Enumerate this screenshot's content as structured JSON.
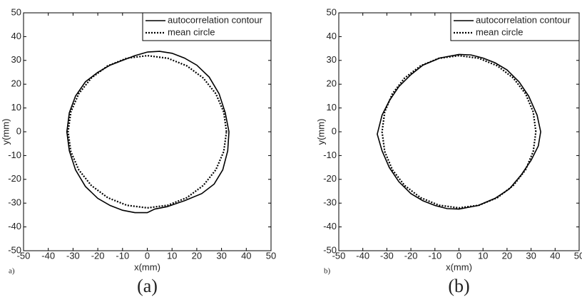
{
  "chart_data": [
    {
      "type": "line",
      "panel_label": "a)",
      "caption": "(a)",
      "x_label": "x(mm)",
      "y_label": "y(mm)",
      "xlim": [
        -50,
        50
      ],
      "ylim": [
        -50,
        50
      ],
      "xticks": [
        -50,
        -40,
        -30,
        -20,
        -10,
        0,
        10,
        20,
        30,
        40,
        50
      ],
      "yticks": [
        -50,
        -40,
        -30,
        -20,
        -10,
        0,
        10,
        20,
        30,
        40,
        50
      ],
      "legend": "upper right",
      "series": [
        {
          "name": "autocorrelation contour",
          "color": "#000000",
          "style": "solid",
          "x": [
            0,
            5,
            10,
            15,
            20,
            25,
            29,
            31.5,
            33,
            32.5,
            30.5,
            27,
            22,
            15,
            8,
            3,
            0,
            -5,
            -10,
            -15,
            -20,
            -25,
            -29,
            -31.5,
            -32.5,
            -31.5,
            -29,
            -25,
            -20,
            -15,
            -10,
            -5,
            0
          ],
          "values": [
            33.5,
            33.8,
            33,
            31,
            28,
            23,
            16,
            8,
            0,
            -8,
            -16,
            -22,
            -26,
            -29,
            -31.5,
            -32.5,
            -34,
            -34,
            -33,
            -31,
            -28,
            -23,
            -16,
            -8,
            0,
            8,
            15,
            21,
            25,
            28,
            30,
            32,
            33.5
          ]
        },
        {
          "name": "mean circle",
          "color": "#000000",
          "style": "dotted",
          "x": [
            32,
            30.9,
            27.7,
            22.6,
            16,
            8.3,
            0,
            -8.3,
            -16,
            -22.6,
            -27.7,
            -30.9,
            -32,
            -30.9,
            -27.7,
            -22.6,
            -16,
            -8.3,
            0,
            8.3,
            16,
            22.6,
            27.7,
            30.9,
            32
          ],
          "values": [
            0,
            8.3,
            16,
            22.6,
            27.7,
            30.9,
            32,
            30.9,
            27.7,
            22.6,
            16,
            8.3,
            0,
            -8.3,
            -16,
            -22.6,
            -27.7,
            -30.9,
            -32,
            -30.9,
            -27.7,
            -22.6,
            -16,
            -8.3,
            0
          ]
        }
      ]
    },
    {
      "type": "line",
      "panel_label": "b)",
      "caption": "(b)",
      "x_label": "x(mm)",
      "y_label": "y(mm)",
      "xlim": [
        -50,
        50
      ],
      "ylim": [
        -50,
        50
      ],
      "xticks": [
        -50,
        -40,
        -30,
        -20,
        -10,
        0,
        10,
        20,
        30,
        40,
        50
      ],
      "yticks": [
        -50,
        -40,
        -30,
        -20,
        -10,
        0,
        10,
        20,
        30,
        40,
        50
      ],
      "legend": "upper right",
      "series": [
        {
          "name": "autocorrelation contour",
          "color": "#000000",
          "style": "solid",
          "x": [
            0,
            5,
            10,
            15,
            20,
            25,
            29,
            32.5,
            34,
            33,
            30,
            26,
            21,
            15,
            8,
            0,
            -5,
            -10,
            -15,
            -20,
            -25,
            -29,
            -32,
            -34,
            -32,
            -29,
            -25,
            -20,
            -15,
            -8,
            0
          ],
          "values": [
            32.5,
            32.3,
            31,
            29,
            26,
            21,
            15,
            7,
            0,
            -6,
            -12,
            -18,
            -24,
            -28,
            -31,
            -32.5,
            -32.3,
            -31,
            -29,
            -26,
            -21,
            -15,
            -8,
            -1,
            7,
            13,
            19,
            24,
            28,
            31,
            32.5
          ]
        },
        {
          "name": "mean circle",
          "color": "#000000",
          "style": "dotted",
          "x": [
            32,
            30.9,
            27.7,
            22.6,
            16,
            8.3,
            0,
            -8.3,
            -16,
            -22.6,
            -27.7,
            -30.9,
            -32,
            -30.9,
            -27.7,
            -22.6,
            -16,
            -8.3,
            0,
            8.3,
            16,
            22.6,
            27.7,
            30.9,
            32
          ],
          "values": [
            0,
            8.3,
            16,
            22.6,
            27.7,
            30.9,
            32,
            30.9,
            27.7,
            22.6,
            16,
            8.3,
            0,
            -8.3,
            -16,
            -22.6,
            -27.7,
            -30.9,
            -32,
            -30.9,
            -27.7,
            -22.6,
            -16,
            -8.3,
            0
          ]
        }
      ]
    }
  ]
}
